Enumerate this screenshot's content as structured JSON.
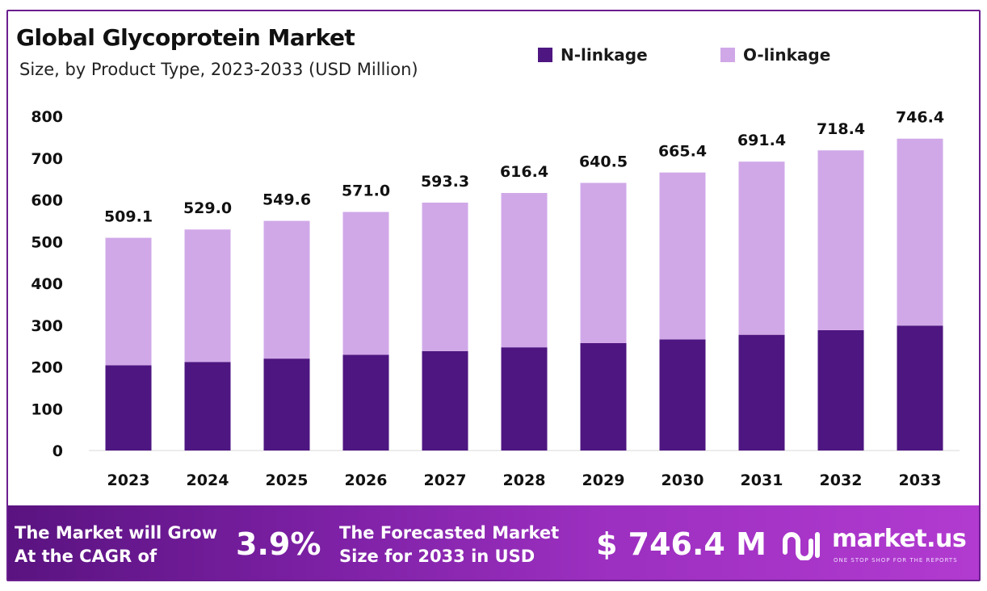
{
  "header": {
    "title": "Global Glycoprotein Market",
    "subtitle": "Size, by Product Type, 2023-2033 (USD Million)"
  },
  "colors": {
    "n_linkage": "#4e1681",
    "o_linkage": "#d0a8e8",
    "frame": "#6b1f8f",
    "axis_text": "#111111"
  },
  "chart_data": {
    "type": "bar",
    "stacked": true,
    "categories": [
      "2023",
      "2024",
      "2025",
      "2026",
      "2027",
      "2028",
      "2029",
      "2030",
      "2031",
      "2032",
      "2033"
    ],
    "series": [
      {
        "name": "N-linkage",
        "values": [
          204,
          212,
          220,
          229,
          238,
          247,
          257,
          266,
          277,
          288,
          299
        ]
      },
      {
        "name": "O-linkage",
        "values": [
          305.1,
          317.0,
          329.6,
          342.0,
          355.3,
          369.4,
          383.5,
          399.4,
          414.4,
          430.4,
          447.4
        ]
      }
    ],
    "totals_labels": [
      "509.1",
      "529.0",
      "549.6",
      "571.0",
      "593.3",
      "616.4",
      "640.5",
      "665.4",
      "691.4",
      "718.4",
      "746.4"
    ],
    "totals": [
      509.1,
      529.0,
      549.6,
      571.0,
      593.3,
      616.4,
      640.5,
      665.4,
      691.4,
      718.4,
      746.4
    ],
    "y_ticks": [
      0,
      100,
      200,
      300,
      400,
      500,
      600,
      700,
      800
    ],
    "ylim": [
      0,
      800
    ],
    "grid": false,
    "legend_position": "top-right",
    "title": "Global Glycoprotein Market",
    "subtitle": "Size, by Product Type, 2023-2033 (USD Million)",
    "xlabel": "",
    "ylabel": ""
  },
  "banner": {
    "cagr_text_1": "The Market will Grow",
    "cagr_text_2": "At the CAGR of",
    "cagr_value": "3.9%",
    "forecast_text_1": "The Forecasted Market",
    "forecast_text_2": "Size for 2033 in USD",
    "forecast_value": "$ 746.4 M",
    "brand_name": "market.us",
    "brand_tagline": "ONE STOP SHOP FOR THE REPORTS",
    "brand_icon": "market-us-logo"
  }
}
